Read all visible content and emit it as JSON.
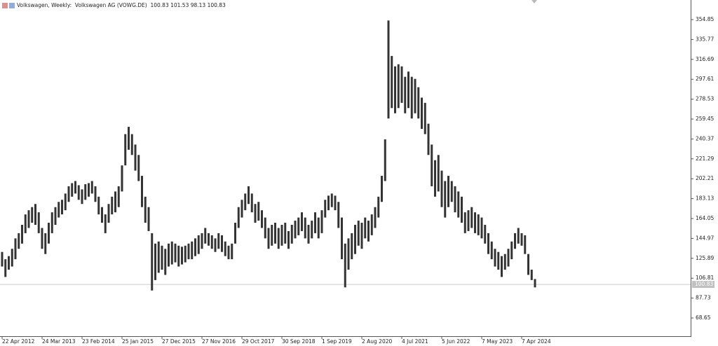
{
  "chart_data": {
    "type": "range",
    "title": "Volkswagen, Weekly:  Volkswagen AG (VOWG.DE)  100.83 101.53 98.13 100.83",
    "categories": [
      "22 Apr 2012",
      null,
      null,
      null,
      null,
      null,
      null,
      null,
      null,
      null,
      null,
      null,
      "24 Mar 2013",
      null,
      null,
      null,
      null,
      null,
      null,
      null,
      null,
      null,
      null,
      null,
      "23 Feb 2014",
      null,
      null,
      null,
      null,
      null,
      null,
      null,
      null,
      null,
      null,
      null,
      "25 Jan 2015",
      null,
      null,
      null,
      null,
      null,
      null,
      null,
      null,
      null,
      null,
      null,
      "27 Dec 2015",
      null,
      null,
      null,
      null,
      null,
      null,
      null,
      null,
      null,
      null,
      null,
      "27 Nov 2016",
      null,
      null,
      null,
      null,
      null,
      null,
      null,
      null,
      null,
      null,
      null,
      "29 Oct 2017",
      null,
      null,
      null,
      null,
      null,
      null,
      null,
      null,
      null,
      null,
      null,
      "30 Sep 2018",
      null,
      null,
      null,
      null,
      null,
      null,
      null,
      null,
      null,
      null,
      null,
      "1 Sep 2019",
      null,
      null,
      null,
      null,
      null,
      null,
      null,
      null,
      null,
      null,
      null,
      "2 Aug 2020",
      null,
      null,
      null,
      null,
      null,
      null,
      null,
      null,
      null,
      null,
      null,
      "4 Jul 2021",
      null,
      null,
      null,
      null,
      null,
      null,
      null,
      null,
      null,
      null,
      null,
      "5 Jun 2022",
      null,
      null,
      null,
      null,
      null,
      null,
      null,
      null,
      null,
      null,
      null,
      "7 May 2023",
      null,
      null,
      null,
      null,
      null,
      null,
      null,
      null,
      null,
      null,
      null,
      "7 Apr 2024",
      null,
      null,
      null,
      null
    ],
    "series": [
      {
        "color": "#333333",
        "low": [
          118,
          108,
          115,
          118,
          125,
          135,
          140,
          150,
          155,
          160,
          158,
          150,
          135,
          130,
          140,
          150,
          158,
          165,
          168,
          172,
          180,
          185,
          188,
          182,
          178,
          182,
          185,
          188,
          180,
          168,
          160,
          150,
          160,
          168,
          170,
          175,
          190,
          215,
          230,
          225,
          210,
          200,
          175,
          160,
          152,
          95,
          105,
          112,
          115,
          110,
          118,
          120,
          122,
          118,
          120,
          122,
          125,
          125,
          128,
          130,
          135,
          140,
          138,
          135,
          132,
          135,
          132,
          128,
          125,
          125,
          140,
          155,
          165,
          172,
          178,
          170,
          160,
          162,
          155,
          145,
          135,
          138,
          140,
          135,
          138,
          140,
          135,
          140,
          145,
          148,
          152,
          145,
          140,
          145,
          150,
          145,
          150,
          165,
          172,
          175,
          172,
          155,
          125,
          98,
          115,
          125,
          130,
          138,
          135,
          145,
          142,
          148,
          155,
          165,
          180,
          200,
          260,
          270,
          265,
          270,
          275,
          265,
          270,
          260,
          265,
          260,
          250,
          245,
          225,
          195,
          185,
          190,
          175,
          165,
          175,
          180,
          170,
          165,
          160,
          150,
          152,
          155,
          150,
          148,
          145,
          140,
          130,
          125,
          118,
          115,
          108,
          115,
          118,
          125,
          135,
          140,
          138,
          130,
          110,
          105,
          98
        ],
        "high": [
          132,
          125,
          128,
          135,
          145,
          150,
          158,
          168,
          172,
          175,
          178,
          170,
          155,
          150,
          160,
          170,
          175,
          180,
          182,
          188,
          195,
          198,
          200,
          196,
          192,
          197,
          198,
          200,
          195,
          185,
          175,
          168,
          178,
          185,
          190,
          195,
          215,
          245,
          252,
          245,
          235,
          225,
          205,
          185,
          175,
          150,
          140,
          142,
          138,
          135,
          140,
          142,
          140,
          138,
          137,
          138,
          140,
          142,
          145,
          148,
          150,
          155,
          150,
          148,
          145,
          150,
          148,
          142,
          138,
          140,
          160,
          175,
          182,
          188,
          195,
          188,
          178,
          180,
          172,
          165,
          155,
          158,
          160,
          155,
          158,
          160,
          152,
          158,
          162,
          165,
          170,
          165,
          158,
          162,
          170,
          165,
          172,
          182,
          186,
          188,
          186,
          180,
          165,
          140,
          145,
          150,
          158,
          162,
          160,
          165,
          162,
          168,
          175,
          185,
          205,
          240,
          354,
          320,
          310,
          312,
          310,
          300,
          305,
          300,
          298,
          290,
          280,
          275,
          255,
          235,
          220,
          225,
          210,
          200,
          205,
          200,
          195,
          190,
          185,
          170,
          172,
          175,
          170,
          168,
          165,
          158,
          150,
          142,
          135,
          132,
          128,
          130,
          135,
          142,
          150,
          155,
          150,
          148,
          130,
          115,
          106
        ]
      }
    ],
    "ylim": [
      51.18,
      373.66
    ],
    "yticks": [
      354.85,
      335.77,
      316.69,
      297.61,
      278.53,
      259.45,
      240.37,
      221.29,
      202.21,
      183.13,
      164.05,
      144.97,
      125.89,
      106.81,
      87.73,
      68.65
    ],
    "last_price": 100.83
  }
}
